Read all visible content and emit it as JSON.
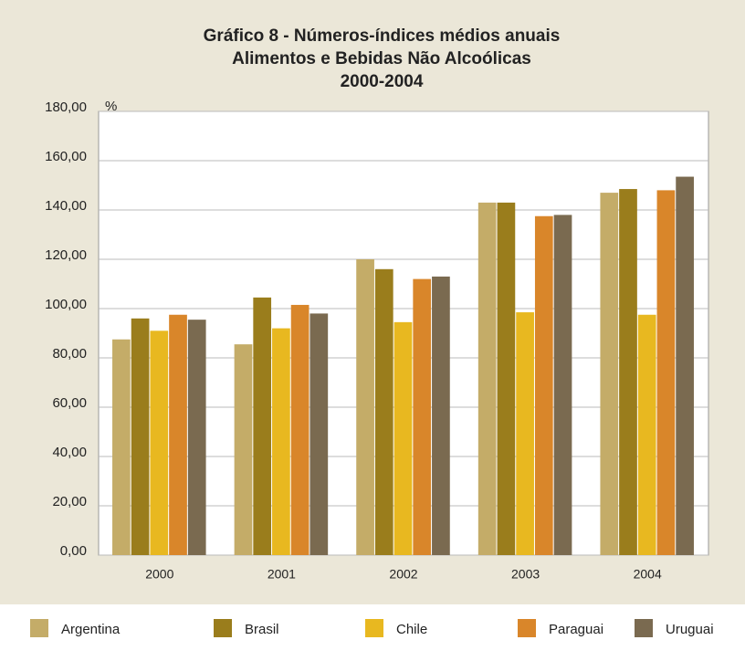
{
  "chart_data": {
    "type": "bar",
    "title": [
      "Gráfico 8 - Números-índices médios anuais",
      "Alimentos e Bebidas Não Alcoólicas",
      "2000-2004"
    ],
    "y_label": "%",
    "categories": [
      "2000",
      "2001",
      "2002",
      "2003",
      "2004"
    ],
    "series": [
      {
        "name": "Argentina",
        "color": "#c4ac68",
        "values": [
          87.5,
          85.5,
          120,
          143,
          147
        ]
      },
      {
        "name": "Brasil",
        "color": "#9a7d1c",
        "values": [
          96,
          104.5,
          116,
          143,
          148.5
        ]
      },
      {
        "name": "Chile",
        "color": "#e8b820",
        "values": [
          91,
          92,
          94.5,
          98.5,
          97.5
        ]
      },
      {
        "name": "Paraguai",
        "color": "#d9862a",
        "values": [
          97.5,
          101.5,
          112,
          137.5,
          148
        ]
      },
      {
        "name": "Uruguai",
        "color": "#7a6a50",
        "values": [
          95.5,
          98,
          113,
          138,
          153.5
        ]
      }
    ],
    "ylim": [
      0,
      180
    ],
    "yticks": [
      {
        "value": 0,
        "label": "0,00"
      },
      {
        "value": 20,
        "label": "20,00"
      },
      {
        "value": 40,
        "label": "40,00"
      },
      {
        "value": 60,
        "label": "60,00"
      },
      {
        "value": 80,
        "label": "80,00"
      },
      {
        "value": 100,
        "label": "100,00"
      },
      {
        "value": 120,
        "label": "120,00"
      },
      {
        "value": 140,
        "label": "140,00"
      },
      {
        "value": 160,
        "label": "160,00"
      },
      {
        "value": 180,
        "label": "180,00"
      }
    ],
    "grid": true,
    "legend": "bottom"
  }
}
